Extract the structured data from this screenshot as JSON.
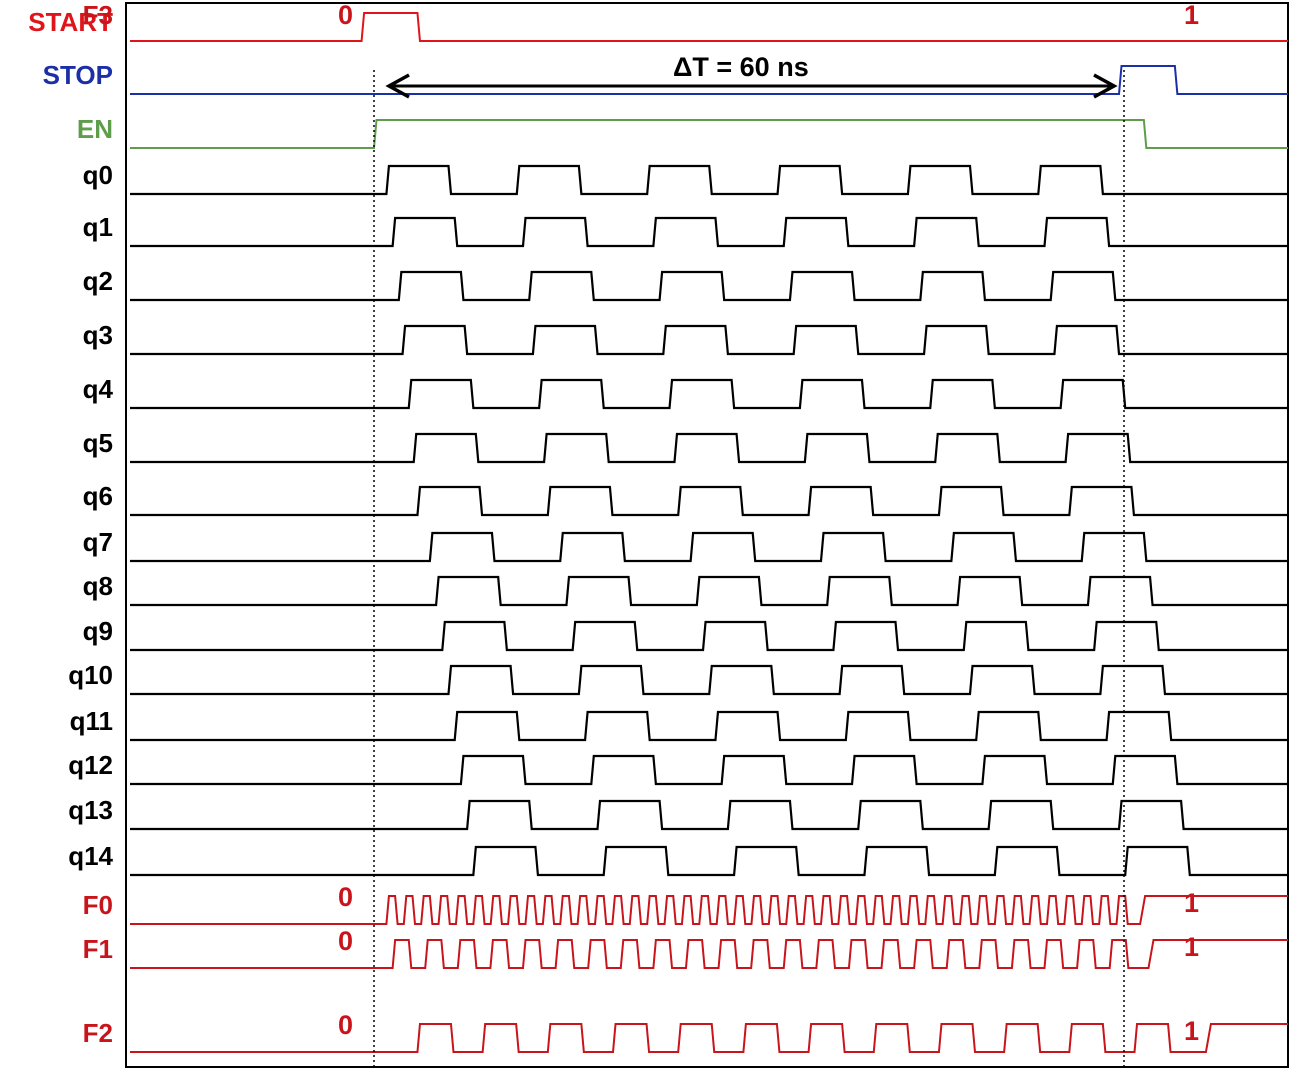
{
  "chart_data": {
    "type": "timing-diagram",
    "annotation": {
      "text": "ΔT = 60 ns",
      "t_start_ns": 0,
      "t_end_ns": 60
    },
    "colors": {
      "START": "#e0151b",
      "STOP": "#1b2fa6",
      "EN": "#5e9e4a",
      "q": "#000000",
      "F": "#c8151b"
    },
    "t_range_ns": [
      -21,
      76
    ],
    "signals": [
      {
        "name": "START",
        "color_key": "START",
        "kind": "pulse",
        "t_rise": -1,
        "t_fall": 3.5
      },
      {
        "name": "STOP",
        "color_key": "STOP",
        "kind": "pulse",
        "t_rise": 60,
        "t_fall": 64.5
      },
      {
        "name": "EN",
        "color_key": "EN",
        "kind": "pulse",
        "t_rise": 0,
        "t_fall": 62
      },
      {
        "name": "q0",
        "color_key": "q",
        "kind": "clock",
        "t_first_rise": 1.0,
        "period_ns": 10.5,
        "high_ns": 5.0,
        "cycles": 6
      },
      {
        "name": "q1",
        "color_key": "q",
        "kind": "clock",
        "t_first_rise": 1.5,
        "period_ns": 10.5,
        "high_ns": 5.0,
        "cycles": 6
      },
      {
        "name": "q2",
        "color_key": "q",
        "kind": "clock",
        "t_first_rise": 2.0,
        "period_ns": 10.5,
        "high_ns": 5.0,
        "cycles": 6
      },
      {
        "name": "q3",
        "color_key": "q",
        "kind": "clock",
        "t_first_rise": 2.3,
        "period_ns": 10.5,
        "high_ns": 5.0,
        "cycles": 6
      },
      {
        "name": "q4",
        "color_key": "q",
        "kind": "clock",
        "t_first_rise": 2.8,
        "period_ns": 10.5,
        "high_ns": 5.0,
        "cycles": 6
      },
      {
        "name": "q5",
        "color_key": "q",
        "kind": "clock",
        "t_first_rise": 3.2,
        "period_ns": 10.5,
        "high_ns": 5.0,
        "cycles": 6
      },
      {
        "name": "q6",
        "color_key": "q",
        "kind": "clock",
        "t_first_rise": 3.5,
        "period_ns": 10.5,
        "high_ns": 5.0,
        "cycles": 6
      },
      {
        "name": "q7",
        "color_key": "q",
        "kind": "clock",
        "t_first_rise": 4.5,
        "period_ns": 10.5,
        "high_ns": 5.0,
        "cycles": 6
      },
      {
        "name": "q8",
        "color_key": "q",
        "kind": "clock",
        "t_first_rise": 5.0,
        "period_ns": 10.5,
        "high_ns": 5.0,
        "cycles": 6
      },
      {
        "name": "q9",
        "color_key": "q",
        "kind": "clock",
        "t_first_rise": 5.5,
        "period_ns": 10.5,
        "high_ns": 5.0,
        "cycles": 6
      },
      {
        "name": "q10",
        "color_key": "q",
        "kind": "clock",
        "t_first_rise": 6.0,
        "period_ns": 10.5,
        "high_ns": 5.0,
        "cycles": 6
      },
      {
        "name": "q11",
        "color_key": "q",
        "kind": "clock",
        "t_first_rise": 6.5,
        "period_ns": 10.5,
        "high_ns": 5.0,
        "cycles": 6
      },
      {
        "name": "q12",
        "color_key": "q",
        "kind": "clock",
        "t_first_rise": 7.0,
        "period_ns": 10.5,
        "high_ns": 5.0,
        "cycles": 6
      },
      {
        "name": "q13",
        "color_key": "q",
        "kind": "clock",
        "t_first_rise": 7.5,
        "period_ns": 10.5,
        "high_ns": 5.0,
        "cycles": 6
      },
      {
        "name": "q14",
        "color_key": "q",
        "kind": "clock",
        "t_first_rise": 8.0,
        "period_ns": 10.5,
        "high_ns": 5.0,
        "cycles": 6
      },
      {
        "name": "F0",
        "color_key": "F",
        "kind": "clock",
        "t_first_rise": 1.0,
        "period_ns": 1.4,
        "high_ns": 0.7,
        "cycles": 43,
        "initial_value": "0",
        "final_value": "1"
      },
      {
        "name": "F1",
        "color_key": "F",
        "kind": "clock",
        "t_first_rise": 1.5,
        "period_ns": 2.625,
        "high_ns": 1.3,
        "cycles": 23,
        "initial_value": "0",
        "final_value": "1"
      },
      {
        "name": "F2",
        "color_key": "F",
        "kind": "clock",
        "t_first_rise": 3.5,
        "period_ns": 5.25,
        "high_ns": 2.7,
        "cycles": 12,
        "initial_value": "0",
        "final_value": "1"
      },
      {
        "name": "F3",
        "color_key": "F",
        "kind": "clock",
        "t_first_rise": 6.0,
        "period_ns": 10.5,
        "high_ns": 5.0,
        "cycles": 6,
        "initial_value": "0",
        "final_value": "1"
      }
    ]
  }
}
